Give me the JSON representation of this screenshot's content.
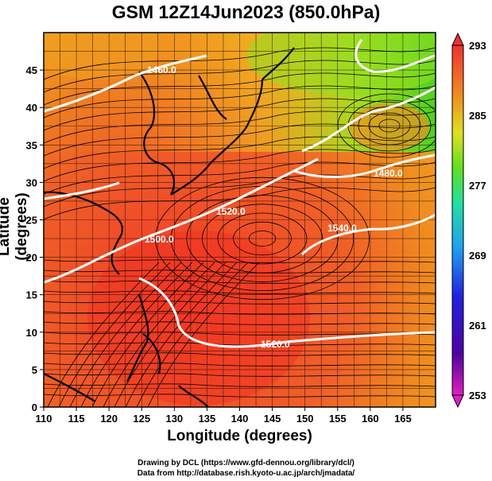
{
  "title": "GSM 12Z14Jun2023 (850.0hPa)",
  "xlabel": "Longitude (degrees)",
  "ylabel": "Latitude (degrees)",
  "credit_line1": "Drawing by DCL (https://www.gfd-dennou.org/library/dcl/)",
  "credit_line2": "Data from http://database.rish.kyoto-u.ac.jp/arch/jmadata/",
  "colors": {
    "warm_core": "#f0402a",
    "mid": "#f08020",
    "cool": "#60d020",
    "contour": "#ffffff",
    "coastline": "#000000"
  },
  "chart_data": {
    "type": "map",
    "x_ticks": [
      "110",
      "115",
      "120",
      "125",
      "130",
      "135",
      "140",
      "145",
      "150",
      "155",
      "160",
      "165"
    ],
    "y_ticks": [
      "0",
      "5",
      "10",
      "15",
      "20",
      "25",
      "30",
      "35",
      "40",
      "45"
    ],
    "xlim": [
      110,
      170
    ],
    "ylim": [
      0,
      50
    ],
    "colorbar": {
      "labels": [
        "293",
        "285",
        "277",
        "269",
        "261",
        "253"
      ],
      "min": 253,
      "max": 293
    },
    "contour_labels": [
      "1460.0",
      "1480.0",
      "1500.0",
      "1520.0",
      "1540.0",
      "1520.0"
    ]
  }
}
